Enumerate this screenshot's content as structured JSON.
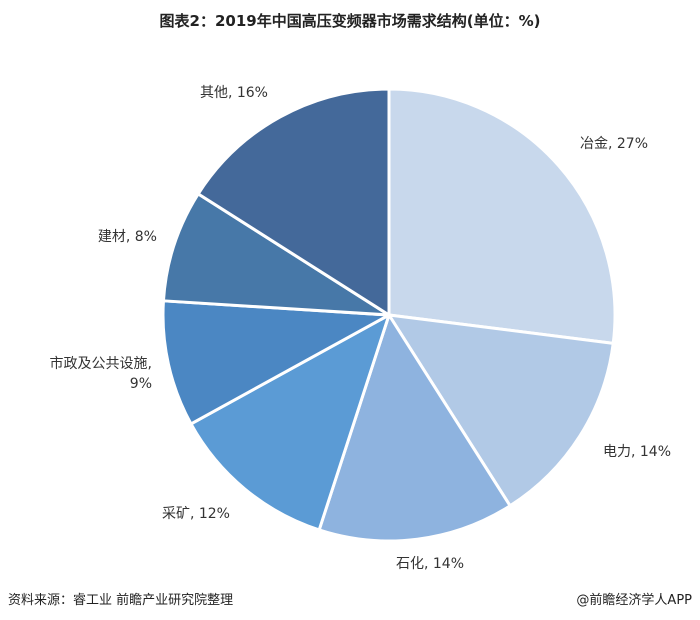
{
  "title": "图表2：2019年中国高压变频器市场需求结构(单位：%)",
  "chart_data": {
    "type": "pie",
    "slices": [
      {
        "category": "冶金",
        "value": 27,
        "label": "冶金, 27%",
        "color": "#c8d8ec"
      },
      {
        "category": "电力",
        "value": 14,
        "label": "电力, 14%",
        "color": "#b1c9e6"
      },
      {
        "category": "石化",
        "value": 14,
        "label": "石化, 14%",
        "color": "#8eb3df"
      },
      {
        "category": "采矿",
        "value": 12,
        "label": "采矿, 12%",
        "color": "#5b9bd5"
      },
      {
        "category": "市政及公共设施",
        "value": 9,
        "label": "市政及公共设施,|9%",
        "color": "#4b87c3"
      },
      {
        "category": "建材",
        "value": 8,
        "label": "建材, 8%",
        "color": "#4778a8"
      },
      {
        "category": "其他",
        "value": 16,
        "label": "其他, 16%",
        "color": "#44699a"
      }
    ],
    "start_angle_deg": 0,
    "direction": "clockwise",
    "legend": "none"
  },
  "footer": {
    "source": "资料来源：睿工业 前瞻产业研究院整理",
    "credit": "@前瞻经济学人APP"
  }
}
